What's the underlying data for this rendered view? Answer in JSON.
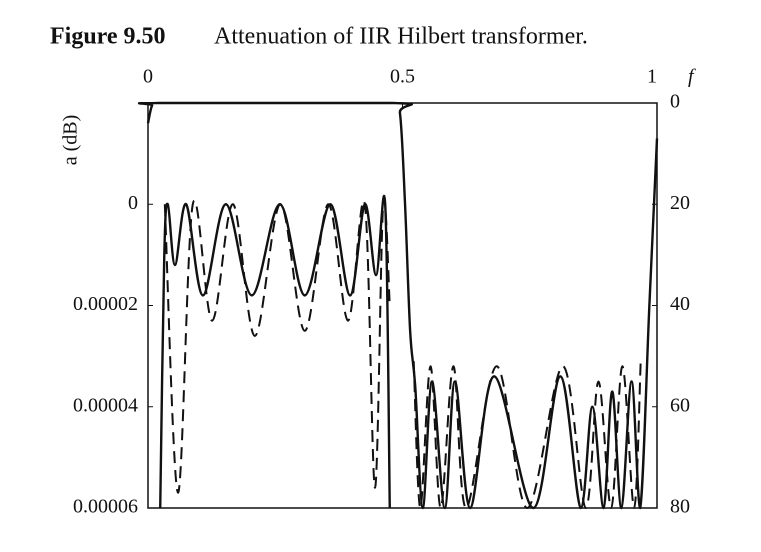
{
  "chart_data": {
    "type": "line",
    "figure_label": "Figure 9.50",
    "title": "Attenuation of IIR Hilbert transformer.",
    "xlabel": "f",
    "ylabel": "a (dB)",
    "xlim": [
      0,
      1
    ],
    "xticks": [
      0,
      0.5,
      1
    ],
    "ylim": [
      -2e-05,
      6e-05
    ],
    "yticks": [
      0,
      2e-05,
      4e-05,
      6e-05
    ],
    "y2lim": [
      0,
      80
    ],
    "y2ticks": [
      0,
      20,
      40,
      60,
      80
    ],
    "y_inverted": true,
    "grid": false,
    "series": [
      {
        "color": "#111111",
        "dashed": false,
        "axis": "y2",
        "x": [
          0,
          0.008,
          0.02,
          0.48,
          0.495,
          0.505,
          0.515,
          0.525,
          0.54,
          0.558,
          0.583,
          0.603,
          0.633,
          0.68,
          0.757,
          0.81,
          0.85,
          0.873,
          0.895,
          0.912,
          0.93,
          0.95,
          0.967,
          0.985,
          1
        ],
        "values": [
          4,
          0.5,
          0,
          0,
          2,
          20,
          45,
          56,
          80,
          55,
          80,
          55,
          80,
          54,
          80,
          54,
          80,
          60,
          80,
          57,
          80,
          55,
          80,
          40,
          7
        ]
      },
      {
        "color": "#111111",
        "dashed": true,
        "axis": "y2",
        "x": [
          0.522,
          0.535,
          0.555,
          0.575,
          0.6,
          0.625,
          0.685,
          0.745,
          0.815,
          0.86,
          0.885,
          0.91,
          0.932,
          0.955,
          0.968
        ],
        "values": [
          51,
          80,
          52,
          80,
          52,
          80,
          52,
          80,
          52,
          80,
          55,
          80,
          52,
          80,
          51
        ]
      },
      {
        "color": "#111111",
        "dashed": false,
        "axis": "y",
        "x": [
          0.024,
          0.032,
          0.039,
          0.053,
          0.075,
          0.108,
          0.153,
          0.204,
          0.259,
          0.308,
          0.358,
          0.397,
          0.426,
          0.448,
          0.466,
          0.475
        ],
        "values": [
          6e-05,
          1e-05,
          0,
          1.2e-05,
          0,
          1.8e-05,
          0,
          1.8e-05,
          0,
          1.8e-05,
          0,
          1.8e-05,
          0,
          1.4e-05,
          0,
          6e-05
        ]
      },
      {
        "color": "#111111",
        "dashed": true,
        "axis": "y",
        "x": [
          0.033,
          0.059,
          0.088,
          0.126,
          0.167,
          0.21,
          0.26,
          0.308,
          0.354,
          0.393,
          0.426,
          0.446,
          0.462,
          0.475
        ],
        "values": [
          0,
          5.7e-05,
          0,
          2.3e-05,
          0,
          2.6e-05,
          0,
          2.5e-05,
          0,
          2.3e-05,
          0,
          5.6e-05,
          0,
          2e-05
        ]
      }
    ]
  }
}
